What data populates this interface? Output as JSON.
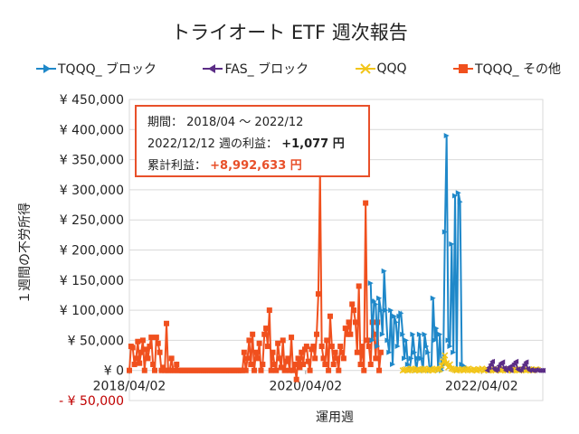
{
  "title": "トライオート ETF 週次報告",
  "colors": {
    "tqqq_block": "#1f88c9",
    "fas_block": "#5b2d86",
    "qqq": "#f2c519",
    "tqqq_other": "#f0501e",
    "negative_label": "#c00000",
    "grid": "#d9d9d9",
    "callout_border": "#e8502a"
  },
  "callout": {
    "period_label": "期間：",
    "period_value": "2018/04 ～ 2022/12",
    "week_label": "2022/12/12 週の利益：",
    "week_value": "+1,077 円",
    "total_label": "累計利益：",
    "total_value": "+8,992,633 円"
  },
  "chart_data": {
    "type": "line",
    "title": "トライオート ETF 週次報告",
    "xlabel": "運用週",
    "ylabel": "１週間の不労所得",
    "ylim": [
      -50000,
      450000
    ],
    "y_ticks": [
      450000,
      400000,
      350000,
      300000,
      250000,
      200000,
      150000,
      100000,
      50000,
      0,
      -50000
    ],
    "y_tick_labels": [
      "¥ 450,000",
      "¥ 400,000",
      "¥ 350,000",
      "¥ 300,000",
      "¥ 250,000",
      "¥ 200,000",
      "¥ 150,000",
      "¥ 100,000",
      "¥ 50,000",
      "¥ 0",
      "- ¥ 50,000"
    ],
    "x_tick_labels": [
      "2018/04/02",
      "2020/04/02",
      "2022/04/02"
    ],
    "x_range": [
      "2018/04/02",
      "2022/12/12"
    ],
    "x_interval": "weekly",
    "grid": true,
    "legend": "top",
    "series": [
      {
        "name": "TQQQ_ ブロック",
        "key": "tqqq_block",
        "marker": "triangle-right",
        "start": "2020/12/28",
        "values": [
          145000,
          50000,
          115000,
          110000,
          40000,
          120000,
          100000,
          60000,
          165000,
          100000,
          50000,
          30000,
          100000,
          10000,
          90000,
          80000,
          40000,
          90000,
          95000,
          60000,
          20000,
          50000,
          10000,
          0,
          20000,
          60000,
          30000,
          0,
          20000,
          60000,
          20000,
          0,
          60000,
          40000,
          30000,
          0,
          5000,
          120000,
          50000,
          70000,
          0,
          60000,
          0,
          10000,
          230000,
          390000,
          50000,
          40000,
          210000,
          30000,
          290000,
          0,
          295000,
          280000,
          10000,
          8000,
          5000
        ]
      },
      {
        "name": "FAS_ ブロック",
        "key": "fas_block",
        "marker": "triangle-left",
        "start": "2022/04/25",
        "values": [
          0,
          5000,
          10000,
          15000,
          3000,
          0,
          2000,
          8000,
          12000,
          14000,
          4000,
          0,
          3000,
          6000,
          0,
          9000,
          12000,
          15000,
          2000,
          0,
          1000,
          5000,
          10000,
          14000,
          3000,
          0,
          1077,
          0,
          0,
          1000,
          0,
          0,
          0,
          0
        ]
      },
      {
        "name": "QQQ",
        "key": "qqq",
        "marker": "star",
        "start": "2021/05/10",
        "values": [
          0,
          1000,
          2000,
          0,
          1000,
          3000,
          2000,
          0,
          1000,
          2000,
          0,
          1000,
          2000,
          3000,
          1000,
          0,
          2000,
          1000,
          0,
          2000,
          3000,
          1000,
          2000,
          8000,
          15000,
          25000,
          12000,
          5000,
          10000,
          3000,
          2000,
          1000,
          0,
          2000,
          1000,
          2000,
          0,
          1000,
          2000,
          3000,
          1000,
          0,
          2000,
          1000,
          0,
          2000,
          1000,
          3000,
          0,
          1000,
          2000,
          0,
          1000,
          2000,
          1000,
          0,
          2000,
          1000,
          0,
          1000,
          2000,
          1000,
          0,
          2000,
          1000,
          0,
          1000,
          2000,
          1000,
          0,
          1000,
          2000,
          1000,
          0,
          1000,
          2000,
          1000,
          0,
          1000,
          2000,
          1000
        ]
      },
      {
        "name": "TQQQ_ その他",
        "key": "tqqq_other",
        "marker": "square",
        "start": "2018/04/02",
        "values": [
          0,
          40000,
          38000,
          10000,
          20000,
          48000,
          12000,
          30000,
          50000,
          0,
          35000,
          20000,
          40000,
          55000,
          10000,
          0,
          55000,
          45000,
          30000,
          0,
          5000,
          0,
          78000,
          0,
          0,
          20000,
          0,
          0,
          10000,
          0,
          0,
          0,
          0,
          0,
          0,
          0,
          0,
          0,
          0,
          0,
          0,
          0,
          0,
          0,
          0,
          0,
          0,
          0,
          0,
          0,
          0,
          0,
          0,
          0,
          0,
          0,
          0,
          0,
          0,
          0,
          0,
          0,
          0,
          0,
          0,
          0,
          0,
          0,
          30000,
          0,
          20000,
          50000,
          10000,
          60000,
          0,
          30000,
          20000,
          45000,
          0,
          10000,
          60000,
          70000,
          40000,
          100000,
          0,
          30000,
          10000,
          0,
          45000,
          20000,
          5000,
          50000,
          0,
          15000,
          20000,
          0,
          55000,
          0,
          10000,
          -15000,
          20000,
          5000,
          30000,
          10000,
          35000,
          40000,
          15000,
          0,
          35000,
          40000,
          20000,
          60000,
          127000,
          330000,
          40000,
          20000,
          10000,
          50000,
          0,
          90000,
          40000,
          10000,
          30000,
          20000,
          0,
          40000,
          30000,
          20000,
          70000,
          60000,
          80000,
          60000,
          110000,
          100000,
          80000,
          30000,
          140000,
          10000,
          40000,
          0,
          278000,
          50000,
          40000,
          10000,
          80000,
          60000,
          20000,
          80000,
          0,
          30000
        ]
      }
    ]
  }
}
